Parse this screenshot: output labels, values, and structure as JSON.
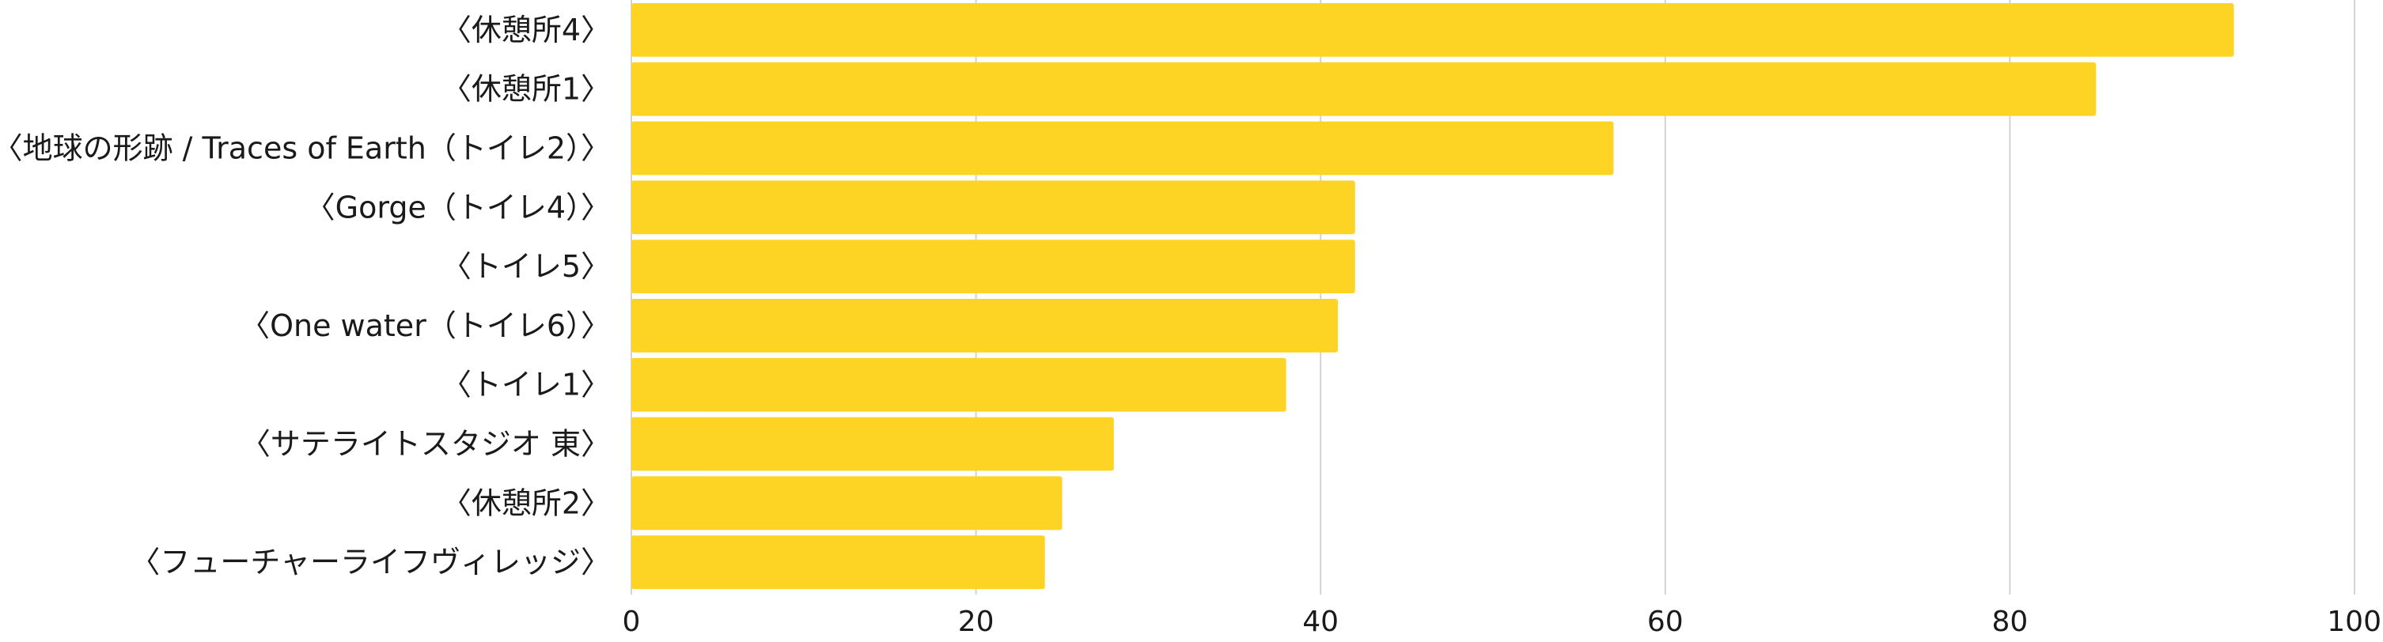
{
  "chart_data": {
    "type": "bar",
    "orientation": "horizontal",
    "title": "",
    "xlabel": "",
    "ylabel": "",
    "xlim": [
      0,
      100
    ],
    "x_ticks": [
      0,
      20,
      40,
      60,
      80,
      100
    ],
    "grid": "vertical",
    "legend": "none",
    "bar_color": "#FDD424",
    "grid_color": "#D3D3D3",
    "categories": [
      "〈休憩所4〉",
      "〈休憩所1〉",
      "〈地球の形跡 / Traces of Earth（トイレ2）〉",
      "〈Gorge（トイレ4）〉",
      "〈トイレ5〉",
      "〈One water（トイレ6）〉",
      "〈トイレ1〉",
      "〈サテライトスタジオ 東〉",
      "〈休憩所2〉",
      "〈フューチャーライフヴィレッジ〉"
    ],
    "values": [
      93,
      85,
      57,
      42,
      42,
      41,
      38,
      28,
      25,
      24
    ]
  }
}
